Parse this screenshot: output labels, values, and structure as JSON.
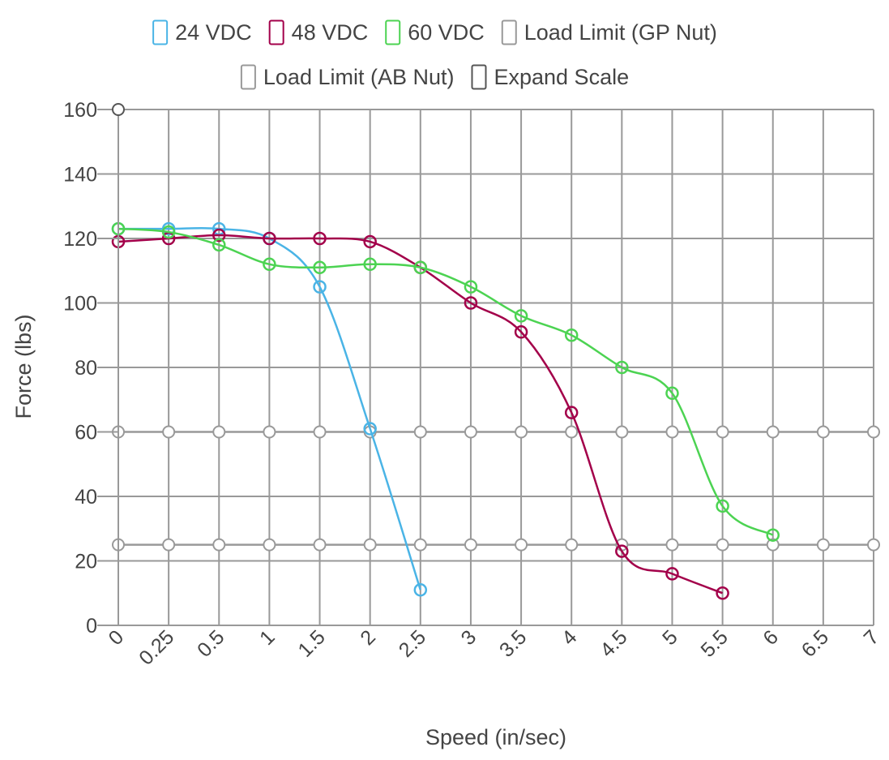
{
  "chart_data": {
    "type": "line",
    "xlabel": "Speed (in/sec)",
    "ylabel": "Force (lbs)",
    "x_categories": [
      "0",
      "0.25",
      "0.5",
      "1",
      "1.5",
      "2",
      "2.5",
      "3",
      "3.5",
      "4",
      "4.5",
      "5",
      "5.5",
      "6",
      "6.5",
      "7"
    ],
    "ylim": [
      0,
      160
    ],
    "y_ticks": [
      0,
      20,
      40,
      60,
      80,
      100,
      120,
      140,
      160
    ],
    "grid": true,
    "legend_position": "top-center",
    "series": [
      {
        "name": "24 VDC",
        "color": "#4ab4e6",
        "visible": true,
        "points": [
          {
            "x": "0",
            "y": 123
          },
          {
            "x": "0.25",
            "y": 123
          },
          {
            "x": "0.5",
            "y": 123
          },
          {
            "x": "1",
            "y": 120
          },
          {
            "x": "1.5",
            "y": 105
          },
          {
            "x": "2",
            "y": 61
          },
          {
            "x": "2.5",
            "y": 11
          }
        ]
      },
      {
        "name": "48 VDC",
        "color": "#a3004a",
        "visible": true,
        "points": [
          {
            "x": "0",
            "y": 119
          },
          {
            "x": "0.25",
            "y": 120
          },
          {
            "x": "0.5",
            "y": 121
          },
          {
            "x": "1",
            "y": 120
          },
          {
            "x": "1.5",
            "y": 120
          },
          {
            "x": "2",
            "y": 119
          },
          {
            "x": "2.5",
            "y": 111
          },
          {
            "x": "3",
            "y": 100
          },
          {
            "x": "3.5",
            "y": 91
          },
          {
            "x": "4",
            "y": 66
          },
          {
            "x": "4.5",
            "y": 23
          },
          {
            "x": "5",
            "y": 16
          },
          {
            "x": "5.5",
            "y": 10
          }
        ]
      },
      {
        "name": "60 VDC",
        "color": "#4cd352",
        "visible": true,
        "points": [
          {
            "x": "0",
            "y": 123
          },
          {
            "x": "0.25",
            "y": 122
          },
          {
            "x": "0.5",
            "y": 118
          },
          {
            "x": "1",
            "y": 112
          },
          {
            "x": "1.5",
            "y": 111
          },
          {
            "x": "2",
            "y": 112
          },
          {
            "x": "2.5",
            "y": 111
          },
          {
            "x": "3",
            "y": 105
          },
          {
            "x": "3.5",
            "y": 96
          },
          {
            "x": "4",
            "y": 90
          },
          {
            "x": "4.5",
            "y": 80
          },
          {
            "x": "5",
            "y": 72
          },
          {
            "x": "5.5",
            "y": 37
          },
          {
            "x": "6",
            "y": 28
          }
        ]
      },
      {
        "name": "Load Limit (GP Nut)",
        "color": "#999999",
        "visible": true,
        "constant_y": 60
      },
      {
        "name": "Load Limit (AB Nut)",
        "color": "#999999",
        "visible": true,
        "constant_y": 25
      }
    ],
    "legend": [
      {
        "label": "24 VDC",
        "color": "#4ab4e6",
        "row": 0
      },
      {
        "label": "48 VDC",
        "color": "#a3004a",
        "row": 0
      },
      {
        "label": "60 VDC",
        "color": "#4cd352",
        "row": 0
      },
      {
        "label": "Load Limit (GP Nut)",
        "color": "#999999",
        "row": 0
      },
      {
        "label": "Load Limit (AB Nut)",
        "color": "#999999",
        "row": 1
      },
      {
        "label": "Expand Scale",
        "color": "#555555",
        "row": 1
      }
    ]
  }
}
